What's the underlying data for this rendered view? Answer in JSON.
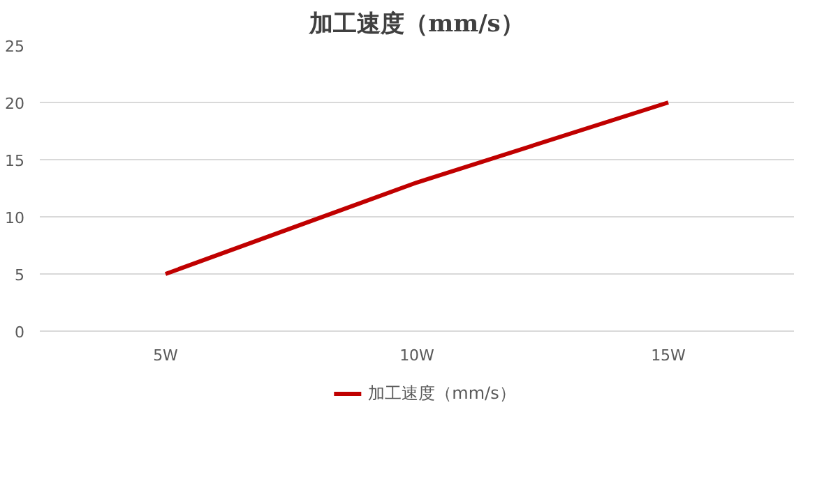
{
  "chart_data": {
    "type": "line",
    "title": "加工速度（mm/s）",
    "categories": [
      "5W",
      "10W",
      "15W"
    ],
    "series": [
      {
        "name": "加工速度（mm/s）",
        "color": "#c00000",
        "values": [
          5,
          13,
          20
        ]
      }
    ],
    "ylim": [
      0,
      25
    ],
    "yticks": [
      0,
      5,
      10,
      15,
      20,
      25
    ],
    "grid": "y",
    "legend": "bottom",
    "marker": "none",
    "line_style": "solid"
  }
}
